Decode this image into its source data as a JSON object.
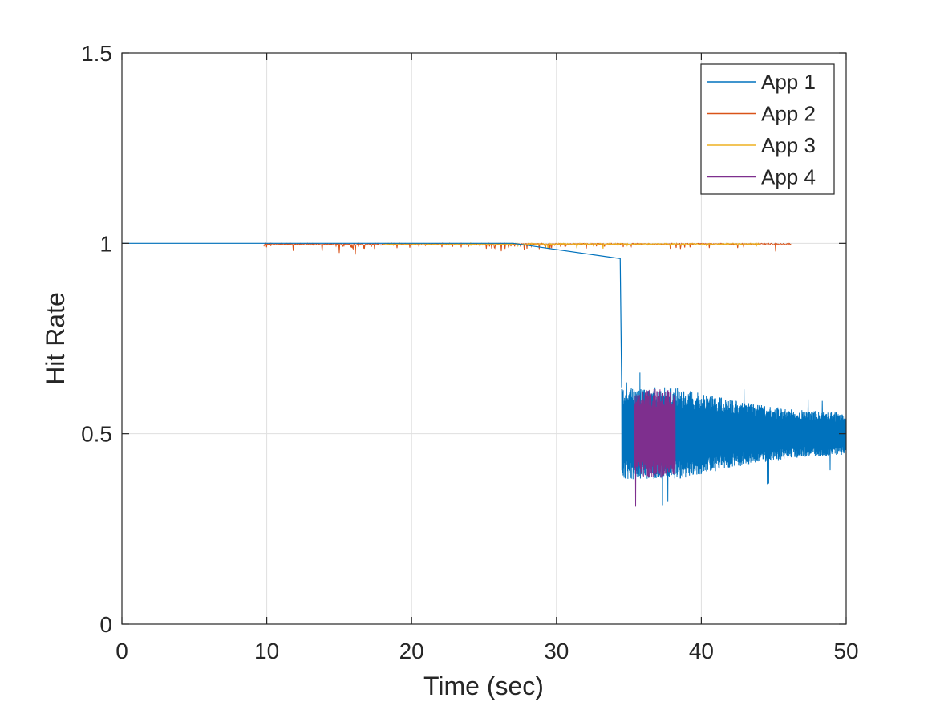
{
  "chart_data": {
    "type": "line",
    "title": "",
    "xlabel": "Time (sec)",
    "ylabel": "Hit Rate",
    "xlim": [
      0,
      50
    ],
    "ylim": [
      0,
      1.5
    ],
    "xticks": [
      0,
      10,
      20,
      30,
      40,
      50
    ],
    "yticks": [
      0,
      0.5,
      1,
      1.5
    ],
    "xtick_labels": [
      "0",
      "10",
      "20",
      "30",
      "40",
      "50"
    ],
    "ytick_labels": [
      "0",
      "0.5",
      "1",
      "1.5"
    ],
    "grid": true,
    "box": true,
    "legend_position": "top-right",
    "series": [
      {
        "name": "App 1",
        "color": "#0072BD",
        "segments": [
          {
            "kind": "line",
            "x": [
              0,
              27.0
            ],
            "y": [
              1.0,
              1.0
            ]
          },
          {
            "kind": "line",
            "x": [
              27.0,
              34.4,
              34.4,
              34.5
            ],
            "y": [
              1.0,
              0.96,
              0.96,
              0.62
            ]
          },
          {
            "kind": "band",
            "x": [
              34.5,
              38.3,
              42.0,
              46.0,
              50.0
            ],
            "center": [
              0.5,
              0.5,
              0.5,
              0.5,
              0.5
            ],
            "half_width": [
              0.12,
              0.12,
              0.09,
              0.065,
              0.055
            ],
            "spike_low": [
              0.37,
              0.28,
              0.31,
              0.36,
              0.39
            ],
            "spike_high": [
              0.64,
              0.78,
              0.66,
              0.6,
              0.58
            ]
          }
        ]
      },
      {
        "name": "App 2",
        "color": "#D95319",
        "segments": [
          {
            "kind": "noise",
            "x": [
              9.8,
              46.2
            ],
            "y": [
              1.0,
              1.0
            ],
            "dip_min": 0.97
          }
        ]
      },
      {
        "name": "App 3",
        "color": "#EDB120",
        "segments": [
          {
            "kind": "noise",
            "x": [
              18.0,
              44.0
            ],
            "y": [
              1.0,
              1.0
            ],
            "dip_min": 0.985
          }
        ]
      },
      {
        "name": "App 4",
        "color": "#7E2F8E",
        "segments": [
          {
            "kind": "band",
            "x": [
              35.4,
              36.3,
              37.2,
              38.2
            ],
            "center": [
              0.5,
              0.5,
              0.5,
              0.5
            ],
            "half_width": [
              0.1,
              0.12,
              0.12,
              0.11
            ],
            "spike_low": [
              0.28,
              0.34,
              0.3,
              0.35
            ],
            "spike_high": [
              0.62,
              0.65,
              0.67,
              0.64
            ]
          }
        ]
      }
    ]
  }
}
